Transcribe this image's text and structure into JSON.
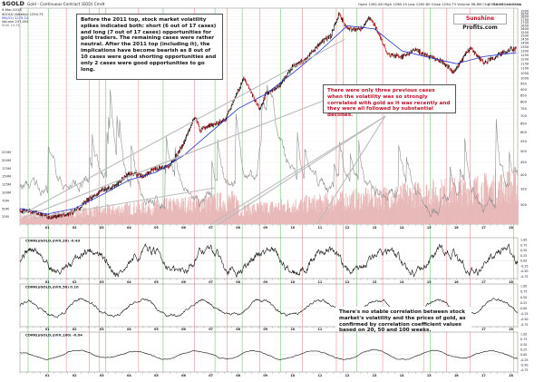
{
  "header": {
    "symbol": "$GOLD",
    "subtitle": "Gold - Continuous Contract (EOD) Cmdt",
    "date": "9-Mar-2018",
    "ohlc": "Open 1261.80  High 1298.15  Low 1262.80  Close 1294.73  Volume 96.8M  Chg +16.99 (+1.32%)",
    "legend_line1": "$GOLD (Weekly) 1294.73",
    "legend_line2": "MA(52) 1275.14",
    "legend_line3": "Volume 237,493",
    "legend_line4": "$VIX 14.74",
    "copyright": "© StockCharts.com"
  },
  "brand": {
    "part1": "Sunshine",
    "part2": " Profits.com"
  },
  "notes": {
    "top_left": "Before the 2011 top, stock market volatility spikes indicated both: short (6 out of 17 cases) and long (7 out of 17 cases) opportunities for gold traders. The remaining cases were rather neutral. After the 2011 top (including it), the implications have become bearish as 8 out of 10 cases were good shorting opportunities and only 2 cases were good opportunities to go long.",
    "top_right": "There were only three previous cases when the volatility was so strongly correlated with gold as it was recently and they were all followed by substantial declines.",
    "bottom": "There's no stable correlation between stock market's volatility and the prices of gold, as confirmed by correlation coefficient values based on 20, 50 and 100 weeks."
  },
  "panel_labels": {
    "corr20": "CORR($GOLD,$VIX,20) -0.43",
    "corr50": "CORR($GOLD,$VIX,50) 0.10",
    "corr100": "CORR($GOLD,$VIX,100) -0.04"
  },
  "main_axis_labels": [
    "1900",
    "1850",
    "1800",
    "1750",
    "1700",
    "1650",
    "1600",
    "1550",
    "1500",
    "1450",
    "1400",
    "1350",
    "1300",
    "1250",
    "1200",
    "1150",
    "1100",
    "1050",
    "1000",
    "950",
    "900",
    "850",
    "800",
    "750",
    "700",
    "650",
    "600",
    "550",
    "500",
    "450",
    "400",
    "350",
    "300",
    "250"
  ],
  "volume_labels": [
    "225M",
    "200M",
    "175M",
    "150M",
    "125M",
    "100M",
    "75M",
    "50M",
    "25M"
  ],
  "corr_axis_labels": [
    "1.00",
    "0.75",
    "0.50",
    "0.25",
    "0.00",
    "-0.25",
    "-0.50",
    "-0.75"
  ],
  "year_labels": [
    "01",
    "02",
    "03",
    "04",
    "05",
    "06",
    "07",
    "08",
    "09",
    "10",
    "11",
    "12",
    "13",
    "14",
    "15",
    "16",
    "17",
    "18"
  ],
  "colors": {
    "gold": "#1a1a1a",
    "gold_up": "#000000",
    "gold_down": "#cc1a1a",
    "ma": "#1f36c8",
    "vix": "#8a8a8a",
    "volume": "#e8b9b9",
    "corr": "#111111",
    "red_vline": "#e06060",
    "green_vline": "#44aa44",
    "trend": "#bbbbbb"
  },
  "chart_data": {
    "type": "line",
    "title": "$GOLD",
    "x_range": [
      "2000-01",
      "2018-03"
    ],
    "ylim": [
      250,
      1950
    ],
    "y_scale": "log",
    "series": [
      {
        "name": "$GOLD (Weekly)",
        "x": [
          2000.0,
          2000.5,
          2001.0,
          2001.5,
          2002.0,
          2002.5,
          2003.0,
          2003.5,
          2004.0,
          2004.5,
          2005.0,
          2005.5,
          2006.0,
          2006.4,
          2006.6,
          2007.0,
          2007.5,
          2008.0,
          2008.2,
          2008.8,
          2009.0,
          2009.5,
          2010.0,
          2010.5,
          2011.0,
          2011.4,
          2011.7,
          2012.0,
          2012.5,
          2012.8,
          2013.0,
          2013.3,
          2013.5,
          2014.0,
          2014.5,
          2015.0,
          2015.5,
          2015.9,
          2016.0,
          2016.5,
          2017.0,
          2017.5,
          2018.0,
          2018.2
        ],
        "values": [
          285,
          280,
          268,
          270,
          282,
          315,
          345,
          360,
          405,
          395,
          425,
          435,
          540,
          700,
          610,
          640,
          670,
          890,
          1000,
          740,
          860,
          930,
          1120,
          1200,
          1400,
          1500,
          1850,
          1600,
          1600,
          1780,
          1670,
          1400,
          1250,
          1230,
          1310,
          1230,
          1170,
          1060,
          1100,
          1340,
          1160,
          1240,
          1330,
          1320
        ]
      },
      {
        "name": "MA(52)",
        "x": [
          2000.0,
          2001.0,
          2002.0,
          2003.0,
          2004.0,
          2005.0,
          2006.0,
          2007.0,
          2008.0,
          2009.0,
          2010.0,
          2011.0,
          2012.0,
          2013.0,
          2014.0,
          2015.0,
          2016.0,
          2017.0,
          2018.0,
          2018.2
        ],
        "values": [
          290,
          275,
          290,
          330,
          380,
          410,
          480,
          600,
          750,
          860,
          1050,
          1300,
          1650,
          1600,
          1300,
          1220,
          1150,
          1230,
          1270,
          1275
        ]
      }
    ]
  }
}
